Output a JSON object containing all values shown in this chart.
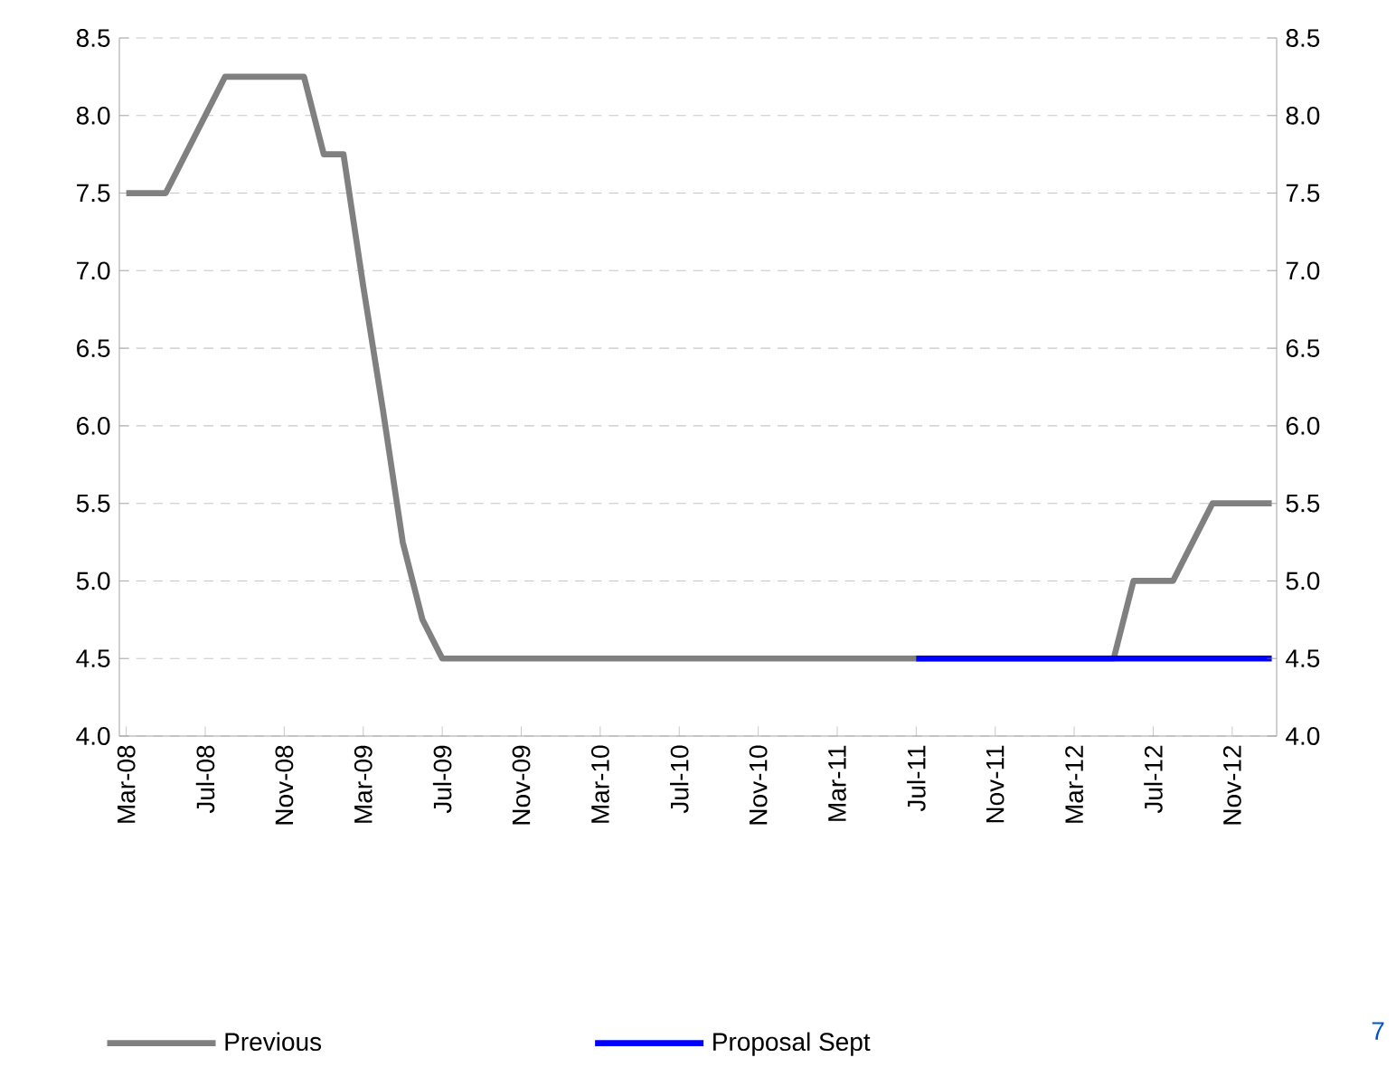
{
  "chart_data": {
    "type": "line",
    "categories": [
      "Mar-08",
      null,
      null,
      null,
      "Jul-08",
      null,
      null,
      null,
      "Nov-08",
      null,
      null,
      null,
      "Mar-09",
      null,
      null,
      null,
      "Jul-09",
      null,
      null,
      null,
      "Nov-09",
      null,
      null,
      null,
      "Mar-10",
      null,
      null,
      null,
      "Jul-10",
      null,
      null,
      null,
      "Nov-10",
      null,
      null,
      null,
      "Mar-11",
      null,
      null,
      null,
      "Jul-11",
      null,
      null,
      null,
      "Nov-11",
      null,
      null,
      null,
      "Mar-12",
      null,
      null,
      null,
      "Jul-12",
      null,
      null,
      null,
      "Nov-12",
      null,
      null
    ],
    "series": [
      {
        "name": "Previous",
        "color": "#808080",
        "values": [
          7.5,
          7.5,
          7.5,
          7.75,
          8.0,
          8.25,
          8.25,
          8.25,
          8.25,
          8.25,
          7.75,
          7.75,
          6.9,
          6.1,
          5.25,
          4.75,
          4.5,
          4.5,
          4.5,
          4.5,
          4.5,
          4.5,
          4.5,
          4.5,
          4.5,
          4.5,
          4.5,
          4.5,
          4.5,
          4.5,
          4.5,
          4.5,
          4.5,
          4.5,
          4.5,
          4.5,
          4.5,
          4.5,
          4.5,
          4.5,
          4.5,
          null,
          null,
          null,
          null,
          null,
          null,
          null,
          null,
          null,
          4.5,
          5.0,
          5.0,
          5.0,
          5.25,
          5.5,
          5.5,
          5.5,
          5.5
        ]
      },
      {
        "name": "Proposal Sept",
        "color": "#0000ff",
        "values": [
          null,
          null,
          null,
          null,
          null,
          null,
          null,
          null,
          null,
          null,
          null,
          null,
          null,
          null,
          null,
          null,
          null,
          null,
          null,
          null,
          null,
          null,
          null,
          null,
          null,
          null,
          null,
          null,
          null,
          null,
          null,
          null,
          null,
          null,
          null,
          null,
          null,
          null,
          null,
          null,
          4.5,
          4.5,
          4.5,
          4.5,
          4.5,
          4.5,
          4.5,
          4.5,
          4.5,
          4.5,
          4.5,
          4.5,
          4.5,
          4.5,
          4.5,
          4.5,
          4.5,
          4.5,
          4.5
        ]
      }
    ],
    "ylim": [
      4.0,
      8.5
    ],
    "yticks": [
      {
        "value": 4,
        "label": "4.0"
      },
      4.5,
      {
        "value": 5,
        "label": "5.0"
      },
      5.5,
      {
        "value": 6,
        "label": "6.0"
      },
      6.5,
      {
        "value": 7,
        "label": "7.0"
      },
      7.5,
      {
        "value": 8,
        "label": "8.0"
      },
      8.5
    ],
    "y2lim": [
      4.0,
      8.5
    ],
    "y2ticks": [
      {
        "value": 4,
        "label": "4.0"
      },
      4.5,
      {
        "value": 5,
        "label": "5.0"
      },
      5.5,
      {
        "value": 6,
        "label": "6.0"
      },
      6.5,
      {
        "value": 7,
        "label": "7.0"
      },
      7.5,
      {
        "value": 8,
        "label": "8.0"
      },
      8.5
    ],
    "grid": "y",
    "legend": "bottom",
    "line_style": "solid",
    "annotations": [
      "7"
    ]
  }
}
